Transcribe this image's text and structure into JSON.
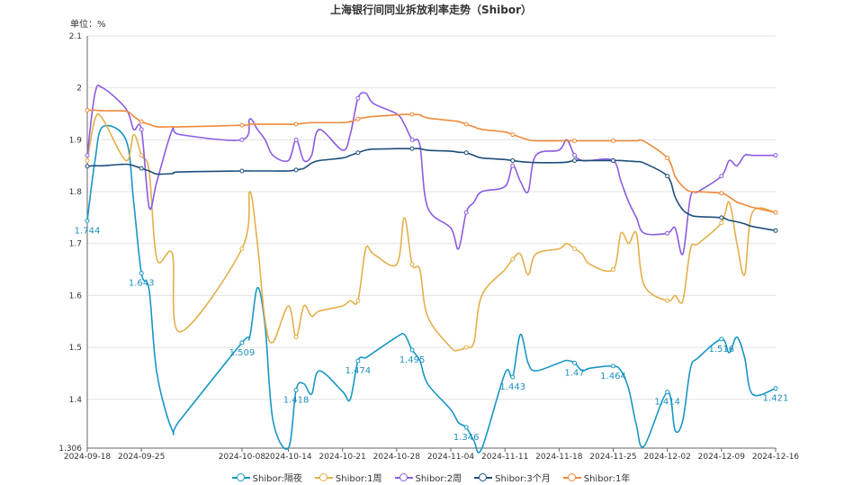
{
  "title": "上海银行间同业拆放利率走势（Shibor）",
  "unit_label": "单位：%",
  "chart_data": {
    "type": "line",
    "title": "上海银行间同业拆放利率走势（Shibor）",
    "ylabel": "单位：%",
    "ylim": [
      1.306,
      2.1
    ],
    "yticks": [
      "2.1",
      "2",
      "1.9",
      "1.8",
      "1.7",
      "1.6",
      "1.5",
      "1.4",
      "1.306"
    ],
    "ytick_values": [
      2.1,
      2.0,
      1.9,
      1.8,
      1.7,
      1.6,
      1.5,
      1.4,
      1.306
    ],
    "xticks": [
      "2024-09-18",
      "2024-09-25",
      "2024-10-08",
      "2024-10-14",
      "2024-10-21",
      "2024-10-28",
      "2024-11-04",
      "2024-11-11",
      "2024-11-18",
      "2024-11-25",
      "2024-12-02",
      "2024-12-09",
      "2024-12-16"
    ],
    "grid": true,
    "legend_position": "bottom",
    "x": [
      "2024-09-18",
      "2024-09-19",
      "2024-09-20",
      "2024-09-23",
      "2024-09-24",
      "2024-09-25",
      "2024-09-26",
      "2024-09-27",
      "2024-09-29",
      "2024-09-30",
      "2024-10-08",
      "2024-10-09",
      "2024-10-10",
      "2024-10-11",
      "2024-10-12",
      "2024-10-14",
      "2024-10-15",
      "2024-10-16",
      "2024-10-17",
      "2024-10-18",
      "2024-10-21",
      "2024-10-22",
      "2024-10-23",
      "2024-10-24",
      "2024-10-25",
      "2024-10-28",
      "2024-10-29",
      "2024-10-30",
      "2024-10-31",
      "2024-11-01",
      "2024-11-04",
      "2024-11-05",
      "2024-11-06",
      "2024-11-07",
      "2024-11-08",
      "2024-11-11",
      "2024-11-12",
      "2024-11-13",
      "2024-11-14",
      "2024-11-15",
      "2024-11-18",
      "2024-11-19",
      "2024-11-20",
      "2024-11-21",
      "2024-11-22",
      "2024-11-25",
      "2024-11-26",
      "2024-11-27",
      "2024-11-28",
      "2024-11-29",
      "2024-12-02",
      "2024-12-03",
      "2024-12-04",
      "2024-12-05",
      "2024-12-06",
      "2024-12-09",
      "2024-12-10",
      "2024-12-11",
      "2024-12-12",
      "2024-12-13",
      "2024-12-16"
    ],
    "series": [
      {
        "name": "Shibor:隔夜",
        "color": "#1a96c4",
        "values": [
          1.744,
          1.86,
          1.925,
          1.9,
          1.78,
          1.643,
          1.61,
          1.45,
          1.34,
          1.36,
          1.509,
          1.52,
          1.615,
          1.54,
          1.36,
          1.306,
          1.418,
          1.43,
          1.41,
          1.455,
          1.415,
          1.4,
          1.474,
          1.48,
          1.49,
          1.52,
          1.525,
          1.495,
          1.475,
          1.43,
          1.38,
          1.355,
          1.346,
          1.32,
          1.305,
          1.45,
          1.443,
          1.525,
          1.47,
          1.455,
          1.47,
          1.475,
          1.47,
          1.455,
          1.46,
          1.464,
          1.455,
          1.42,
          1.35,
          1.31,
          1.414,
          1.34,
          1.36,
          1.46,
          1.48,
          1.516,
          1.49,
          1.52,
          1.48,
          1.41,
          1.421
        ]
      },
      {
        "name": "Shibor:1周",
        "color": "#e3b04b",
        "values": [
          1.86,
          1.94,
          1.94,
          1.86,
          1.91,
          1.87,
          1.84,
          1.67,
          1.68,
          1.53,
          1.69,
          1.8,
          1.7,
          1.55,
          1.51,
          1.58,
          1.52,
          1.58,
          1.56,
          1.57,
          1.58,
          1.59,
          1.59,
          1.69,
          1.68,
          1.66,
          1.75,
          1.66,
          1.65,
          1.56,
          1.5,
          1.495,
          1.5,
          1.51,
          1.6,
          1.65,
          1.67,
          1.68,
          1.64,
          1.68,
          1.69,
          1.7,
          1.69,
          1.68,
          1.66,
          1.65,
          1.72,
          1.7,
          1.72,
          1.62,
          1.59,
          1.6,
          1.59,
          1.69,
          1.7,
          1.74,
          1.78,
          1.7,
          1.64,
          1.76,
          1.76
        ]
      },
      {
        "name": "Shibor:2周",
        "color": "#8c5ce0",
        "values": [
          1.87,
          1.99,
          2.0,
          1.96,
          1.92,
          1.92,
          1.77,
          1.82,
          1.92,
          1.91,
          1.9,
          1.94,
          1.92,
          1.9,
          1.87,
          1.86,
          1.9,
          1.86,
          1.87,
          1.92,
          1.88,
          1.91,
          1.98,
          1.99,
          1.97,
          1.95,
          1.93,
          1.9,
          1.89,
          1.77,
          1.73,
          1.69,
          1.76,
          1.78,
          1.8,
          1.81,
          1.85,
          1.82,
          1.8,
          1.87,
          1.88,
          1.9,
          1.87,
          1.86,
          1.86,
          1.86,
          1.82,
          1.78,
          1.75,
          1.72,
          1.72,
          1.73,
          1.68,
          1.79,
          1.8,
          1.83,
          1.86,
          1.85,
          1.87,
          1.87,
          1.87
        ]
      },
      {
        "name": "Shibor:3个月",
        "color": "#1d4e7a",
        "values": [
          1.849,
          1.85,
          1.85,
          1.853,
          1.85,
          1.845,
          1.84,
          1.834,
          1.835,
          1.838,
          1.84,
          1.84,
          1.84,
          1.84,
          1.84,
          1.84,
          1.842,
          1.845,
          1.855,
          1.86,
          1.865,
          1.87,
          1.875,
          1.88,
          1.882,
          1.883,
          1.883,
          1.883,
          1.883,
          1.88,
          1.878,
          1.876,
          1.875,
          1.87,
          1.865,
          1.862,
          1.86,
          1.858,
          1.857,
          1.856,
          1.856,
          1.857,
          1.86,
          1.86,
          1.86,
          1.86,
          1.86,
          1.859,
          1.858,
          1.855,
          1.83,
          1.79,
          1.765,
          1.755,
          1.752,
          1.75,
          1.745,
          1.742,
          1.738,
          1.733,
          1.725
        ]
      },
      {
        "name": "Shibor:1年",
        "color": "#ee8a3a",
        "values": [
          1.957,
          1.957,
          1.956,
          1.955,
          1.945,
          1.935,
          1.93,
          1.925,
          1.925,
          1.925,
          1.928,
          1.93,
          1.93,
          1.93,
          1.93,
          1.93,
          1.93,
          1.932,
          1.933,
          1.933,
          1.933,
          1.935,
          1.94,
          1.943,
          1.945,
          1.948,
          1.949,
          1.949,
          1.948,
          1.942,
          1.937,
          1.935,
          1.93,
          1.925,
          1.92,
          1.915,
          1.91,
          1.905,
          1.9,
          1.898,
          1.898,
          1.898,
          1.898,
          1.898,
          1.898,
          1.898,
          1.898,
          1.898,
          1.898,
          1.897,
          1.865,
          1.83,
          1.81,
          1.8,
          1.8,
          1.797,
          1.79,
          1.78,
          1.775,
          1.77,
          1.76
        ]
      }
    ],
    "data_labels": [
      {
        "series": 0,
        "index": 0,
        "text": "1.744"
      },
      {
        "series": 0,
        "index": 5,
        "text": "1.643"
      },
      {
        "series": 0,
        "index": 10,
        "text": "1.509"
      },
      {
        "series": 0,
        "index": 16,
        "text": "1.418"
      },
      {
        "series": 0,
        "index": 22,
        "text": "1.474"
      },
      {
        "series": 0,
        "index": 27,
        "text": "1.495"
      },
      {
        "series": 0,
        "index": 32,
        "text": "1.346"
      },
      {
        "series": 0,
        "index": 36,
        "text": "1.443"
      },
      {
        "series": 0,
        "index": 42,
        "text": "1.47"
      },
      {
        "series": 0,
        "index": 45,
        "text": "1.464"
      },
      {
        "series": 0,
        "index": 50,
        "text": "1.414"
      },
      {
        "series": 0,
        "index": 55,
        "text": "1.516"
      },
      {
        "series": 0,
        "index": 60,
        "text": "1.421"
      }
    ]
  }
}
